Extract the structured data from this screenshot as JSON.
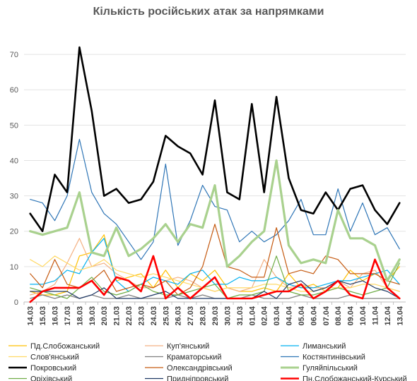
{
  "chart_data": {
    "type": "line",
    "title": "Кількість російських атак за напрямками",
    "xlabel": "",
    "ylabel": "",
    "ylim": [
      0,
      75
    ],
    "yticks": [
      0,
      10,
      20,
      30,
      40,
      50,
      60,
      70
    ],
    "grid": true,
    "legend_position": "bottom",
    "categories": [
      "14.03",
      "15.03",
      "16.03",
      "17.03",
      "18.03",
      "19.03",
      "20.03",
      "21.03",
      "22.03",
      "23.03",
      "24.03",
      "25.03",
      "26.03",
      "27.03",
      "28.03",
      "29.03",
      "30.03",
      "31.03",
      "01.04",
      "02.04",
      "03.04",
      "04.04",
      "05.04",
      "06.04",
      "07.04",
      "08.04",
      "09.04",
      "10.04",
      "11.04",
      "12.04",
      "13.04"
    ],
    "series": [
      {
        "name": "Пд.Слобожанський",
        "color": "#FFC000",
        "width": 1.2,
        "values": [
          3,
          2,
          2,
          3,
          13,
          14,
          19,
          6,
          7,
          8,
          4,
          9,
          4,
          8,
          6,
          9,
          4,
          3,
          3,
          4,
          3,
          8,
          4,
          5,
          3,
          4,
          9,
          6,
          8,
          6,
          10
        ]
      },
      {
        "name": "Куп'янський",
        "color": "#F4B183",
        "width": 1.2,
        "values": [
          2,
          3,
          5,
          11,
          18,
          10,
          11,
          8,
          6,
          4,
          4,
          6,
          7,
          6,
          4,
          3,
          4,
          3,
          4,
          12,
          7,
          4,
          5,
          4,
          4,
          6,
          4,
          8,
          9,
          4,
          3
        ]
      },
      {
        "name": "Лиманський",
        "color": "#00B0F0",
        "width": 1.2,
        "values": [
          5,
          5,
          6,
          9,
          8,
          14,
          18,
          6,
          3,
          5,
          7,
          6,
          5,
          8,
          9,
          5,
          5,
          7,
          6,
          6,
          7,
          5,
          4,
          4,
          5,
          6,
          6,
          7,
          8,
          9,
          5
        ]
      },
      {
        "name": "Слов'янський",
        "color": "#FFD966",
        "width": 1.2,
        "values": [
          12,
          10,
          13,
          11,
          9,
          10,
          12,
          9,
          8,
          7,
          8,
          7,
          6,
          5,
          4,
          3,
          4,
          4,
          4,
          5,
          5,
          4,
          3,
          3,
          4,
          4,
          4,
          5,
          5,
          4,
          3
        ]
      },
      {
        "name": "Краматорський",
        "color": "#7F7F7F",
        "width": 1.2,
        "values": [
          1,
          2,
          1,
          2,
          1,
          2,
          1,
          1,
          2,
          1,
          1,
          1,
          2,
          1,
          2,
          1,
          1,
          1,
          2,
          1,
          1,
          1,
          2,
          1,
          1,
          1,
          2,
          1,
          1,
          1,
          1
        ]
      },
      {
        "name": "Костянтинівський",
        "color": "#2E75B6",
        "width": 1.2,
        "values": [
          29,
          28,
          23,
          30,
          46,
          31,
          25,
          22,
          17,
          12,
          17,
          39,
          16,
          23,
          33,
          27,
          26,
          17,
          20,
          17,
          19,
          23,
          29,
          19,
          19,
          32,
          20,
          28,
          19,
          21,
          15
        ]
      },
      {
        "name": "Покровський",
        "color": "#000000",
        "width": 2.6,
        "values": [
          25,
          20,
          36,
          31,
          72,
          54,
          30,
          32,
          28,
          29,
          34,
          47,
          44,
          42,
          36,
          57,
          31,
          29,
          56,
          31,
          58,
          35,
          26,
          25,
          31,
          26,
          32,
          33,
          26,
          22,
          28
        ]
      },
      {
        "name": "Олександрівський",
        "color": "#C55A11",
        "width": 1.2,
        "values": [
          8,
          4,
          12,
          5,
          4,
          6,
          9,
          3,
          4,
          5,
          4,
          6,
          2,
          4,
          10,
          22,
          10,
          9,
          7,
          7,
          21,
          8,
          9,
          8,
          13,
          12,
          8,
          8,
          8,
          6,
          5
        ]
      },
      {
        "name": "Гуляйпільський",
        "color": "#A9D18E",
        "width": 3.2,
        "values": [
          20,
          19,
          20,
          21,
          31,
          14,
          13,
          21,
          13,
          15,
          18,
          22,
          17,
          22,
          21,
          33,
          10,
          13,
          17,
          20,
          40,
          16,
          11,
          12,
          11,
          26,
          18,
          18,
          16,
          6,
          12
        ]
      },
      {
        "name": "Оріхівський",
        "color": "#70AD47",
        "width": 1.2,
        "values": [
          4,
          3,
          2,
          1,
          4,
          7,
          3,
          2,
          3,
          5,
          3,
          2,
          2,
          3,
          4,
          5,
          1,
          2,
          2,
          3,
          13,
          3,
          2,
          2,
          3,
          4,
          3,
          2,
          3,
          4,
          11
        ]
      },
      {
        "name": "Придніпровський",
        "color": "#1F3864",
        "width": 1.2,
        "values": [
          3,
          3,
          3,
          3,
          1,
          2,
          4,
          1,
          1,
          1,
          2,
          3,
          1,
          1,
          1,
          1,
          1,
          1,
          1,
          3,
          1,
          5,
          6,
          3,
          4,
          6,
          5,
          6,
          4,
          3,
          1
        ]
      },
      {
        "name": "Пн.Слобожанський-Курський",
        "color": "#FF0000",
        "width": 2.6,
        "values": [
          0,
          3,
          4,
          4,
          4,
          6,
          2,
          7,
          6,
          3,
          13,
          1,
          4,
          1,
          4,
          7,
          1,
          1,
          1,
          2,
          3,
          3,
          5,
          1,
          3,
          6,
          2,
          1,
          12,
          4,
          1
        ]
      }
    ]
  }
}
